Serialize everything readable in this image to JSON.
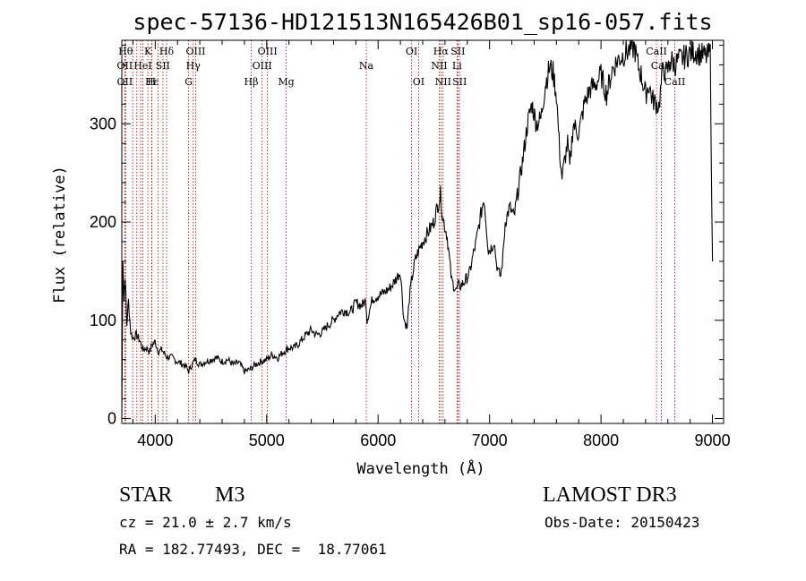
{
  "chart_data": {
    "type": "line",
    "title": "spec-57136-HD121513N165426B01_sp16-057.fits",
    "xlabel": "Wavelength (Å)",
    "ylabel": "Flux (relative)",
    "xlim": [
      3700,
      9100
    ],
    "ylim": [
      -5,
      385
    ],
    "x_ticks": [
      4000,
      5000,
      6000,
      7000,
      8000,
      9000
    ],
    "y_ticks": [
      0,
      100,
      200,
      300
    ],
    "grid": false,
    "series": [
      {
        "name": "flux",
        "x": [
          3700,
          3710,
          3720,
          3730,
          3745,
          3760,
          3780,
          3800,
          3830,
          3860,
          3890,
          3920,
          3950,
          3970,
          4000,
          4030,
          4060,
          4100,
          4150,
          4200,
          4250,
          4280,
          4300,
          4330,
          4360,
          4400,
          4450,
          4500,
          4550,
          4600,
          4650,
          4700,
          4750,
          4800,
          4850,
          4870,
          4900,
          4950,
          5000,
          5050,
          5100,
          5150,
          5200,
          5250,
          5300,
          5350,
          5400,
          5450,
          5500,
          5550,
          5600,
          5650,
          5700,
          5750,
          5800,
          5850,
          5890,
          5900,
          5950,
          6000,
          6050,
          6100,
          6150,
          6200,
          6230,
          6260,
          6280,
          6300,
          6330,
          6360,
          6400,
          6450,
          6500,
          6530,
          6560,
          6580,
          6620,
          6660,
          6700,
          6720,
          6740,
          6780,
          6820,
          6850,
          6880,
          6910,
          6950,
          6990,
          7020,
          7040,
          7060,
          7080,
          7100,
          7120,
          7140,
          7180,
          7220,
          7260,
          7300,
          7340,
          7380,
          7420,
          7460,
          7500,
          7540,
          7570,
          7600,
          7630,
          7650,
          7670,
          7700,
          7720,
          7750,
          7800,
          7850,
          7900,
          7950,
          8000,
          8050,
          8100,
          8150,
          8200,
          8250,
          8300,
          8330,
          8360,
          8400,
          8430,
          8460,
          8500,
          8520,
          8540,
          8560,
          8580,
          8600,
          8630,
          8660,
          8700,
          8750,
          8800,
          8850,
          8900,
          8950,
          8980,
          9000
        ],
        "values": [
          0,
          165,
          120,
          145,
          95,
          120,
          88,
          82,
          85,
          80,
          70,
          72,
          68,
          75,
          78,
          68,
          70,
          63,
          62,
          58,
          55,
          52,
          48,
          55,
          60,
          55,
          58,
          60,
          62,
          58,
          60,
          55,
          57,
          48,
          50,
          52,
          55,
          58,
          60,
          65,
          62,
          68,
          72,
          72,
          78,
          85,
          90,
          85,
          88,
          95,
          100,
          108,
          110,
          108,
          118,
          115,
          120,
          100,
          122,
          125,
          128,
          132,
          140,
          150,
          102,
          92,
          122,
          140,
          160,
          170,
          180,
          190,
          200,
          215,
          228,
          205,
          185,
          140,
          130,
          135,
          135,
          140,
          148,
          165,
          180,
          200,
          225,
          170,
          175,
          182,
          160,
          148,
          145,
          165,
          200,
          215,
          205,
          235,
          265,
          300,
          320,
          300,
          305,
          340,
          358,
          352,
          330,
          270,
          245,
          260,
          280,
          255,
          300,
          290,
          320,
          335,
          340,
          350,
          330,
          355,
          365,
          370,
          375,
          378,
          360,
          350,
          330,
          340,
          325,
          320,
          318,
          340,
          360,
          350,
          355,
          365,
          360,
          365,
          368,
          372,
          374,
          370,
          368,
          372,
          160
        ]
      }
    ],
    "line_markers": [
      {
        "wavelength": 3734,
        "label": "Hθ",
        "row": 1
      },
      {
        "wavelength": 3727,
        "label": "OII",
        "row": 2
      },
      {
        "wavelength": 3727,
        "label": "OII",
        "row": 3
      },
      {
        "wavelength": 3798,
        "label": "",
        "row": 0
      },
      {
        "wavelength": 3835,
        "label": "",
        "row": 0
      },
      {
        "wavelength": 3869,
        "label": "",
        "row": 0
      },
      {
        "wavelength": 3889,
        "label": "HeI",
        "row": 2
      },
      {
        "wavelength": 3934,
        "label": "K",
        "row": 1
      },
      {
        "wavelength": 3970,
        "label": "Hε",
        "row": 3
      },
      {
        "wavelength": 3968,
        "label": "H",
        "row": 3
      },
      {
        "wavelength": 4026,
        "label": "",
        "row": 0
      },
      {
        "wavelength": 4069,
        "label": "SII",
        "row": 2
      },
      {
        "wavelength": 4102,
        "label": "Hδ",
        "row": 1
      },
      {
        "wavelength": 4300,
        "label": "G",
        "row": 3
      },
      {
        "wavelength": 4341,
        "label": "Hγ",
        "row": 2
      },
      {
        "wavelength": 4363,
        "label": "OIII",
        "row": 1
      },
      {
        "wavelength": 4861,
        "label": "Hβ",
        "row": 3
      },
      {
        "wavelength": 4959,
        "label": "OIII",
        "row": 2
      },
      {
        "wavelength": 5007,
        "label": "OIII",
        "row": 1
      },
      {
        "wavelength": 5175,
        "label": "Mg",
        "row": 3
      },
      {
        "wavelength": 5894,
        "label": "Na",
        "row": 2
      },
      {
        "wavelength": 6300,
        "label": "OI",
        "row": 1
      },
      {
        "wavelength": 6363,
        "label": "OI",
        "row": 3
      },
      {
        "wavelength": 6548,
        "label": "NII",
        "row": 2
      },
      {
        "wavelength": 6563,
        "label": "Hα",
        "row": 1
      },
      {
        "wavelength": 6583,
        "label": "NII",
        "row": 3
      },
      {
        "wavelength": 6708,
        "label": "Li",
        "row": 2
      },
      {
        "wavelength": 6716,
        "label": "SII",
        "row": 1
      },
      {
        "wavelength": 6731,
        "label": "SII",
        "row": 3
      },
      {
        "wavelength": 8498,
        "label": "CaII",
        "row": 1
      },
      {
        "wavelength": 8542,
        "label": "CaII",
        "row": 2
      },
      {
        "wavelength": 8662,
        "label": "CaII",
        "row": 3
      }
    ],
    "colors": {
      "spectrum": "#000000",
      "marker": "#aa0000"
    }
  },
  "info": {
    "class_label": "STAR",
    "subclass": "M3",
    "survey": "LAMOST DR3",
    "cz": "cz = 21.0 ± 2.7 km/s",
    "obs_date": "Obs-Date: 20150423",
    "coords": "RA = 182.77493, DEC =  18.77061"
  }
}
